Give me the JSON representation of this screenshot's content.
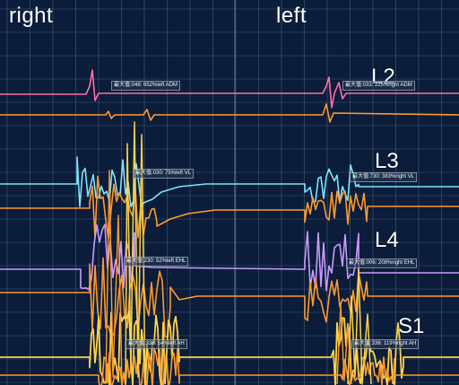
{
  "side_labels": {
    "right": "right",
    "left": "left"
  },
  "levels": [
    {
      "name": "L2",
      "color": "#ff6fa8"
    },
    {
      "name": "L3",
      "color": "#7fe3ff"
    },
    {
      "name": "L4",
      "color": "#c89bff"
    },
    {
      "name": "S1",
      "color": "#ffd34a"
    }
  ],
  "channel_boxes": {
    "l2_right": "最大值:048: 652%left ADM",
    "l2_left": "最大值:033: 225%right ADM",
    "l3_right": "最大值:030: 75%left VL",
    "l3_left": "最大值:730: 383%right VL",
    "l4_right": "最大值:230: 52%left EHL",
    "l4_left": "最大值:006: 208%right EHL",
    "s1_right": "最大值:336: 54%left AH",
    "s1_left": "最大值:336: 119%right AH"
  },
  "colors": {
    "background": "#0b1d3a",
    "grid": "#5a6f8a",
    "baseline_orange": "#ff9a2e",
    "l2_trace": "#ff6fa8",
    "l3_trace": "#7fe3ff",
    "l4_trace": "#c89bff",
    "s1_trace": "#ffd34a"
  }
}
